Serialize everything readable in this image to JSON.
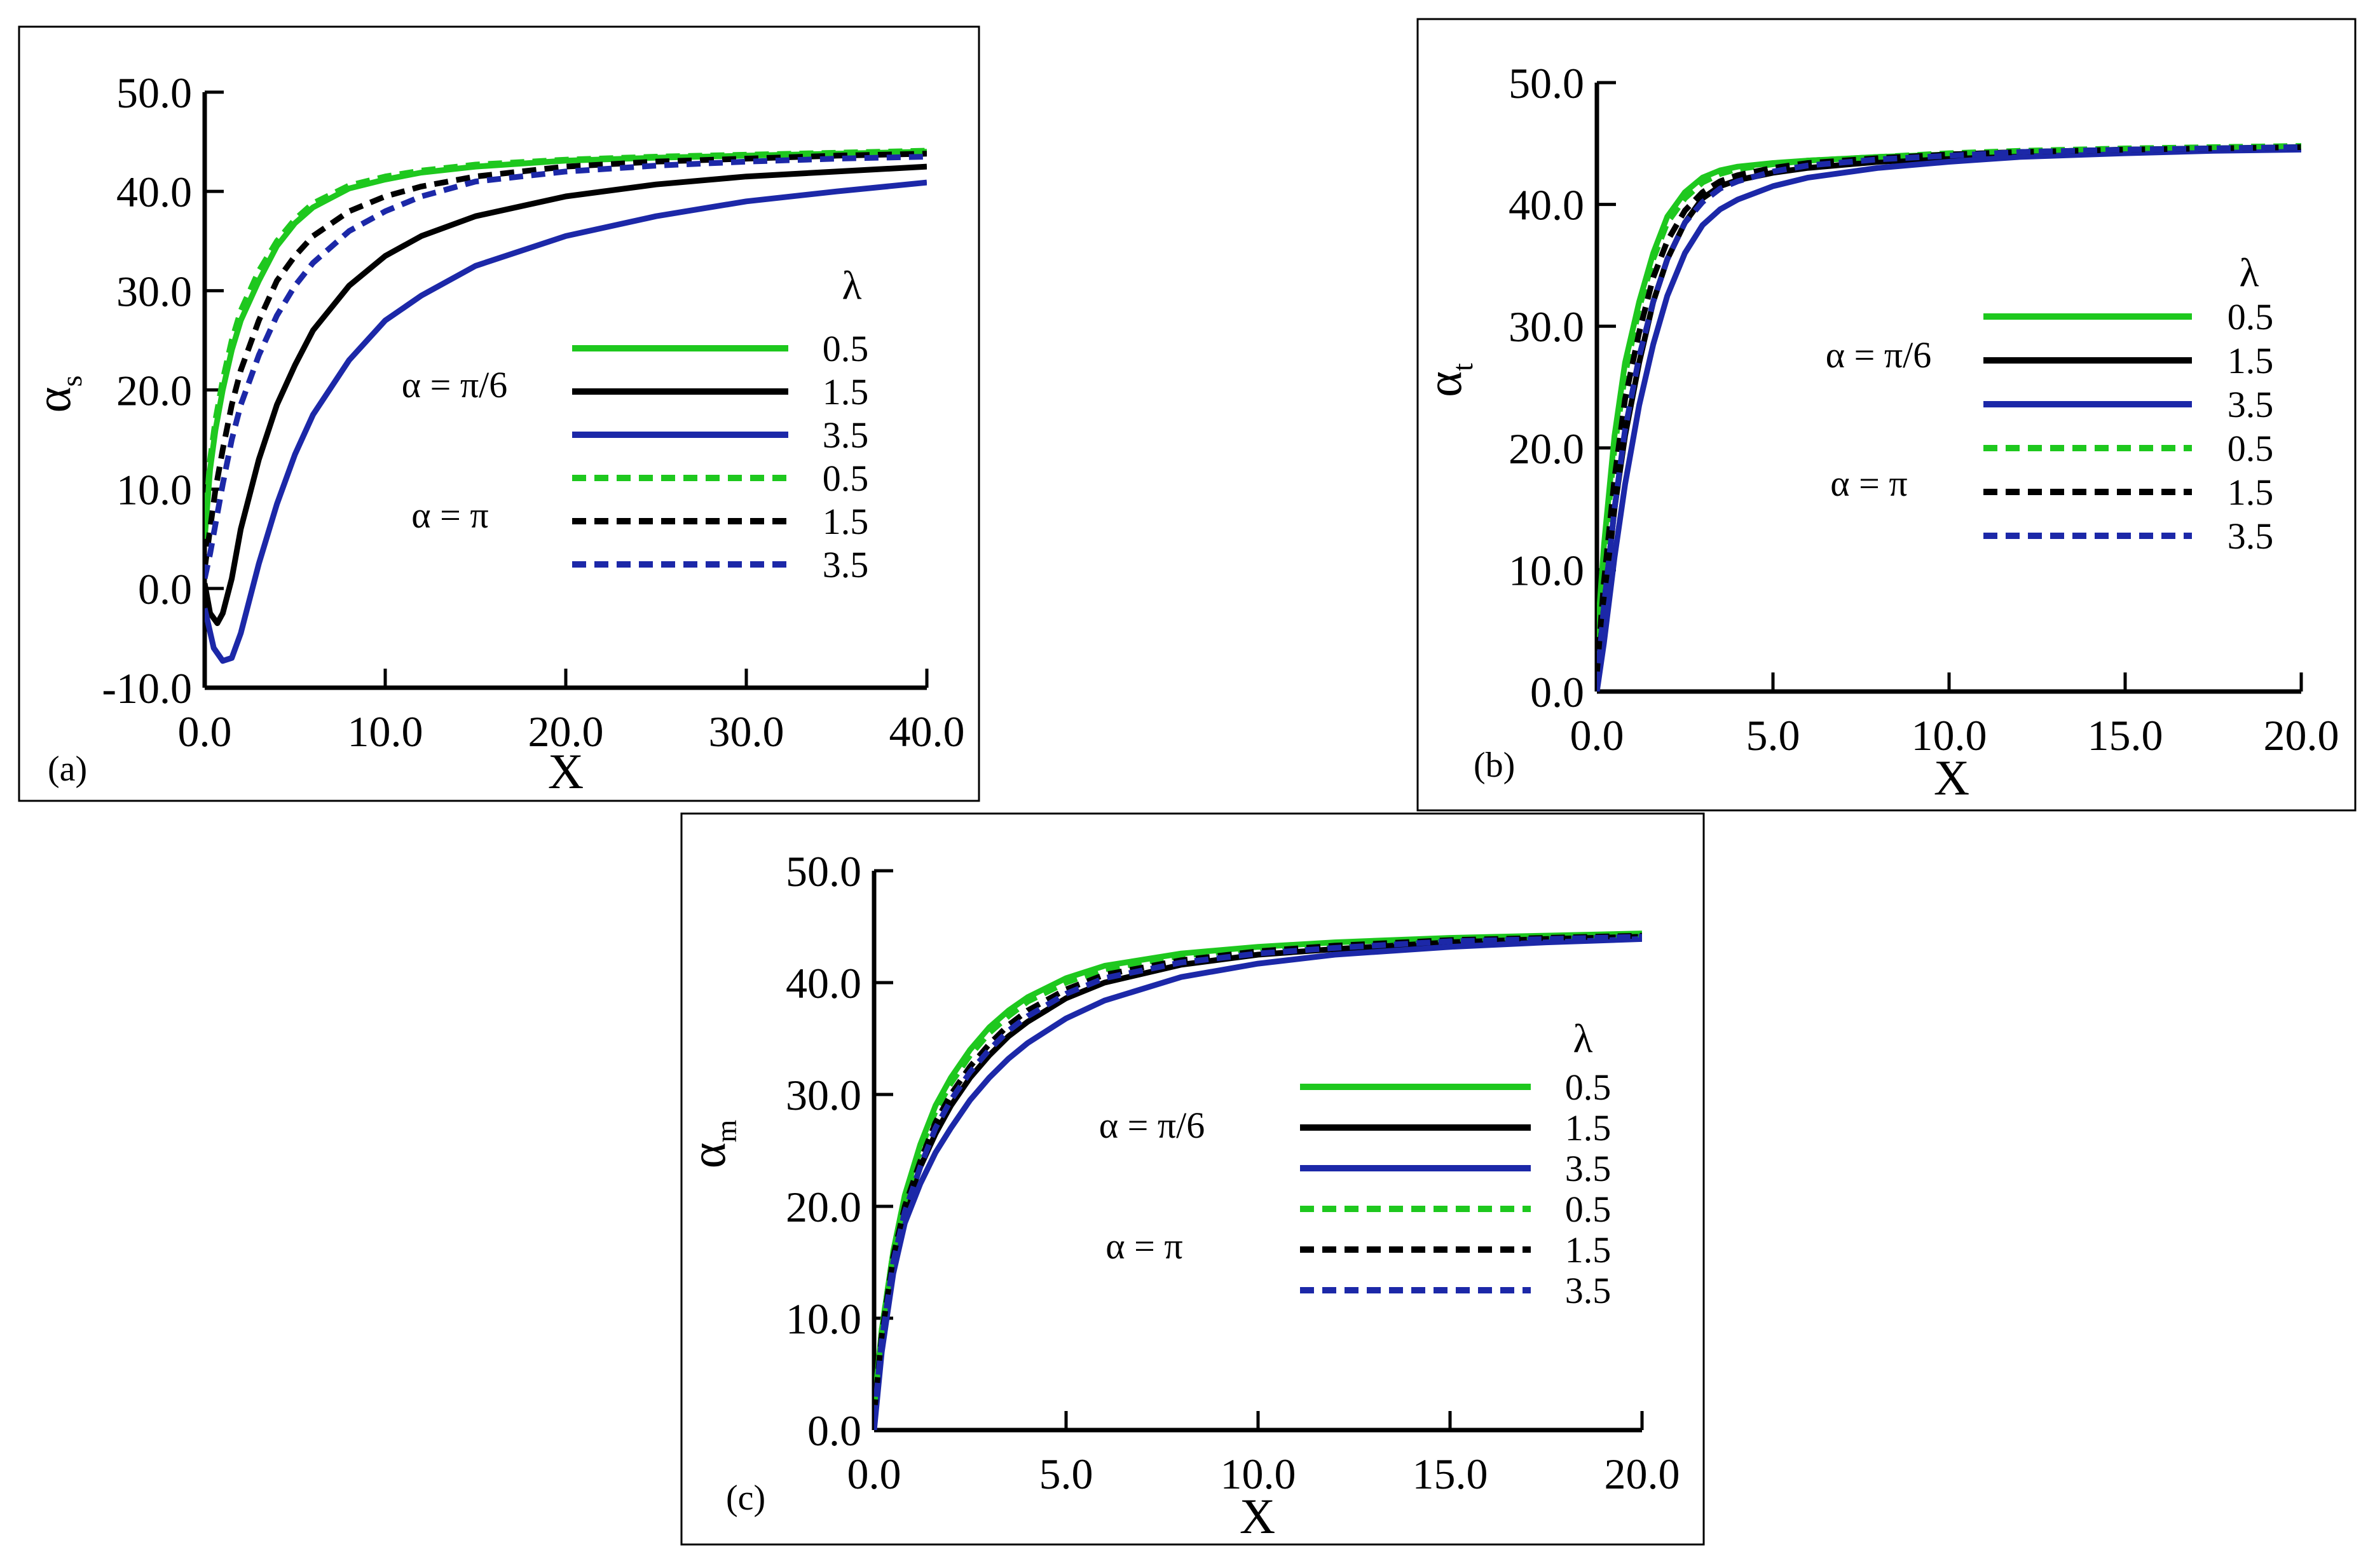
{
  "colors": {
    "lam_0_5": "#1ec81e",
    "lam_1_5": "#000000",
    "lam_3_5": "#1c28a8",
    "axis": "#000000"
  },
  "chart_data": [
    {
      "panel": "(a)",
      "type": "line",
      "xlabel": "X",
      "ylabel": "α",
      "ylabel_sub": "s",
      "xlim": [
        0,
        40
      ],
      "ylim": [
        -10,
        50
      ],
      "xticks": [
        0,
        10,
        20,
        30,
        40
      ],
      "yticks": [
        -10,
        0,
        10,
        20,
        30,
        40,
        50
      ],
      "xtick_labels": [
        "0.0",
        "10.0",
        "20.0",
        "30.0",
        "40.0"
      ],
      "ytick_labels": [
        "-10.0",
        "0.0",
        "10.0",
        "20.0",
        "30.0",
        "40.0",
        "50.0"
      ],
      "legend": {
        "header": "λ",
        "group_labels": [
          "α = π/6",
          "α = π"
        ],
        "entries": [
          "0.5",
          "1.5",
          "3.5",
          "0.5",
          "1.5",
          "3.5"
        ]
      },
      "series": [
        {
          "name": "α = π/6, λ = 0.5",
          "style": "solid",
          "color_key": "lam_0_5",
          "x": [
            0,
            0.3,
            0.6,
            1,
            1.5,
            2,
            3,
            4,
            5,
            6,
            8,
            10,
            12,
            15,
            20,
            25,
            30,
            35,
            40
          ],
          "y": [
            5,
            12,
            16,
            20,
            24,
            27,
            31,
            34.5,
            36.8,
            38.4,
            40.3,
            41.2,
            41.9,
            42.5,
            43.1,
            43.4,
            43.6,
            43.8,
            44
          ]
        },
        {
          "name": "α = π/6, λ = 1.5",
          "style": "solid",
          "color_key": "lam_1_5",
          "x": [
            0,
            0.3,
            0.7,
            1,
            1.5,
            2,
            3,
            4,
            5,
            6,
            8,
            10,
            12,
            15,
            20,
            25,
            30,
            35,
            40
          ],
          "y": [
            0.5,
            -2.5,
            -3.5,
            -2.5,
            1,
            6,
            13,
            18.5,
            22.5,
            26,
            30.5,
            33.5,
            35.5,
            37.5,
            39.5,
            40.7,
            41.5,
            42,
            42.5
          ]
        },
        {
          "name": "α = π/6, λ = 3.5",
          "style": "solid",
          "color_key": "lam_3_5",
          "x": [
            0,
            0.5,
            1,
            1.5,
            2,
            3,
            4,
            5,
            6,
            8,
            10,
            12,
            15,
            20,
            25,
            30,
            35,
            40
          ],
          "y": [
            -2,
            -6,
            -7.3,
            -7,
            -4.5,
            2.5,
            8.5,
            13.5,
            17.5,
            23,
            27,
            29.5,
            32.5,
            35.5,
            37.5,
            39,
            40,
            40.9
          ]
        },
        {
          "name": "α = π, λ = 0.5",
          "style": "dashed",
          "color_key": "lam_0_5",
          "x": [
            0,
            0.3,
            0.6,
            1,
            1.5,
            2,
            3,
            4,
            5,
            6,
            8,
            10,
            12,
            15,
            20,
            25,
            30,
            35,
            40
          ],
          "y": [
            6,
            13,
            17,
            21,
            25,
            28,
            32,
            35,
            37.2,
            38.8,
            40.6,
            41.5,
            42.1,
            42.7,
            43.2,
            43.5,
            43.7,
            43.9,
            44.1
          ]
        },
        {
          "name": "α = π, λ = 1.5",
          "style": "dashed",
          "color_key": "lam_1_5",
          "x": [
            0,
            0.3,
            0.6,
            1,
            1.5,
            2,
            3,
            4,
            5,
            6,
            8,
            10,
            12,
            15,
            20,
            25,
            30,
            35,
            40
          ],
          "y": [
            2,
            6,
            10,
            14,
            18.5,
            22,
            27,
            31,
            33.5,
            35.5,
            38,
            39.5,
            40.5,
            41.5,
            42.5,
            43,
            43.3,
            43.6,
            43.8
          ]
        },
        {
          "name": "α = π, λ = 3.5",
          "style": "dashed",
          "color_key": "lam_3_5",
          "x": [
            0,
            0.3,
            0.6,
            1,
            1.5,
            2,
            3,
            4,
            5,
            6,
            8,
            10,
            12,
            15,
            20,
            25,
            30,
            35,
            40
          ],
          "y": [
            1,
            3.5,
            6.5,
            10.5,
            15,
            18.5,
            23.5,
            27.5,
            30.5,
            32.8,
            36,
            38,
            39.5,
            41,
            42,
            42.6,
            43,
            43.3,
            43.5
          ]
        }
      ]
    },
    {
      "panel": "(b)",
      "type": "line",
      "xlabel": "X",
      "ylabel": "α",
      "ylabel_sub": "t",
      "xlim": [
        0,
        20
      ],
      "ylim": [
        0,
        50
      ],
      "xticks": [
        0,
        5,
        10,
        15,
        20
      ],
      "yticks": [
        0,
        10,
        20,
        30,
        40,
        50
      ],
      "xtick_labels": [
        "0.0",
        "5.0",
        "10.0",
        "15.0",
        "20.0"
      ],
      "ytick_labels": [
        "0.0",
        "10.0",
        "20.0",
        "30.0",
        "40.0",
        "50.0"
      ],
      "legend": {
        "header": "λ",
        "group_labels": [
          "α = π/6",
          "α = π"
        ],
        "entries": [
          "0.5",
          "1.5",
          "3.5",
          "0.5",
          "1.5",
          "3.5"
        ]
      },
      "series": [
        {
          "name": "α = π/6, λ = 0.5",
          "style": "solid",
          "color_key": "lam_0_5",
          "x": [
            0,
            0.2,
            0.5,
            0.8,
            1.2,
            1.6,
            2,
            2.5,
            3,
            3.5,
            4,
            5,
            6,
            8,
            10,
            12,
            15,
            17.5,
            20
          ],
          "y": [
            4,
            12,
            21,
            27,
            32,
            36,
            39,
            41,
            42.2,
            42.8,
            43.1,
            43.4,
            43.6,
            43.9,
            44.1,
            44.3,
            44.5,
            44.6,
            44.7
          ]
        },
        {
          "name": "α = π/6, λ = 1.5",
          "style": "solid",
          "color_key": "lam_1_5",
          "x": [
            0,
            0.2,
            0.5,
            0.8,
            1.2,
            1.6,
            2,
            2.5,
            3,
            3.5,
            4,
            5,
            6,
            8,
            10,
            12,
            15,
            17.5,
            20
          ],
          "y": [
            1,
            7,
            15,
            21,
            27,
            32,
            35.5,
            38.5,
            40.5,
            41.5,
            42,
            42.6,
            43,
            43.5,
            43.8,
            44.1,
            44.4,
            44.5,
            44.6
          ]
        },
        {
          "name": "α = π/6, λ = 3.5",
          "style": "solid",
          "color_key": "lam_3_5",
          "x": [
            0,
            0.2,
            0.5,
            0.8,
            1.2,
            1.6,
            2,
            2.5,
            3,
            3.5,
            4,
            5,
            6,
            8,
            10,
            12,
            15,
            17.5,
            20
          ],
          "y": [
            0,
            4,
            11,
            17,
            23.5,
            28.5,
            32.5,
            36,
            38.3,
            39.6,
            40.4,
            41.5,
            42.2,
            43,
            43.5,
            43.9,
            44.2,
            44.4,
            44.5
          ]
        },
        {
          "name": "α = π, λ = 0.5",
          "style": "dashed",
          "color_key": "lam_0_5",
          "x": [
            0,
            0.2,
            0.5,
            0.8,
            1.2,
            1.6,
            2,
            2.5,
            3,
            3.5,
            4,
            5,
            6,
            8,
            10,
            12,
            15,
            17.5,
            20
          ],
          "y": [
            3,
            11,
            20,
            26,
            31.5,
            35.5,
            38.5,
            40.5,
            41.8,
            42.5,
            42.9,
            43.3,
            43.6,
            43.9,
            44.2,
            44.4,
            44.6,
            44.7,
            44.8
          ]
        },
        {
          "name": "α = π, λ = 1.5",
          "style": "dashed",
          "color_key": "lam_1_5",
          "x": [
            0,
            0.2,
            0.5,
            0.8,
            1.2,
            1.6,
            2,
            2.5,
            3,
            3.5,
            4,
            5,
            6,
            8,
            10,
            12,
            15,
            17.5,
            20
          ],
          "y": [
            1.5,
            9,
            17.5,
            24,
            29.5,
            34,
            37,
            39.5,
            41,
            41.9,
            42.4,
            43,
            43.4,
            43.8,
            44.1,
            44.3,
            44.5,
            44.6,
            44.7
          ]
        },
        {
          "name": "α = π, λ = 3.5",
          "style": "dashed",
          "color_key": "lam_3_5",
          "x": [
            0,
            0.2,
            0.5,
            0.8,
            1.2,
            1.6,
            2,
            2.5,
            3,
            3.5,
            4,
            5,
            6,
            8,
            10,
            12,
            15,
            17.5,
            20
          ],
          "y": [
            0.5,
            7,
            15,
            21.5,
            27.5,
            32,
            35.5,
            38.5,
            40.2,
            41.3,
            41.9,
            42.7,
            43.2,
            43.7,
            44,
            44.3,
            44.5,
            44.6,
            44.7
          ]
        }
      ]
    },
    {
      "panel": "(c)",
      "type": "line",
      "xlabel": "X",
      "ylabel": "α",
      "ylabel_sub": "m",
      "xlim": [
        0,
        20
      ],
      "ylim": [
        0,
        50
      ],
      "xticks": [
        0,
        5,
        10,
        15,
        20
      ],
      "yticks": [
        0,
        10,
        20,
        30,
        40,
        50
      ],
      "xtick_labels": [
        "0.0",
        "5.0",
        "10.0",
        "15.0",
        "20.0"
      ],
      "ytick_labels": [
        "0.0",
        "10.0",
        "20.0",
        "30.0",
        "40.0",
        "50.0"
      ],
      "legend": {
        "header": "λ",
        "group_labels": [
          "α = π/6",
          "α = π"
        ],
        "entries": [
          "0.5",
          "1.5",
          "3.5",
          "0.5",
          "1.5",
          "3.5"
        ]
      },
      "series": [
        {
          "name": "α = π/6, λ = 0.5",
          "style": "solid",
          "color_key": "lam_0_5",
          "x": [
            0,
            0.2,
            0.5,
            0.8,
            1.2,
            1.6,
            2,
            2.5,
            3,
            3.5,
            4,
            5,
            6,
            8,
            10,
            12,
            15,
            17.5,
            20
          ],
          "y": [
            2,
            9,
            16,
            21,
            25.5,
            29,
            31.5,
            34,
            36,
            37.5,
            38.7,
            40.4,
            41.5,
            42.6,
            43.2,
            43.6,
            44,
            44.2,
            44.4
          ]
        },
        {
          "name": "α = π/6, λ = 1.5",
          "style": "solid",
          "color_key": "lam_1_5",
          "x": [
            0,
            0.2,
            0.5,
            0.8,
            1.2,
            1.6,
            2,
            2.5,
            3,
            3.5,
            4,
            5,
            6,
            8,
            10,
            12,
            15,
            17.5,
            20
          ],
          "y": [
            1,
            8,
            15,
            19.5,
            23.5,
            26.5,
            29,
            31.5,
            33.5,
            35.2,
            36.5,
            38.6,
            40,
            41.6,
            42.5,
            43,
            43.6,
            43.9,
            44.1
          ]
        },
        {
          "name": "α = π/6, λ = 3.5",
          "style": "solid",
          "color_key": "lam_3_5",
          "x": [
            0,
            0.2,
            0.5,
            0.8,
            1.2,
            1.6,
            2,
            2.5,
            3,
            3.5,
            4,
            5,
            6,
            8,
            10,
            12,
            15,
            17.5,
            20
          ],
          "y": [
            0,
            7,
            14,
            18.5,
            22,
            24.8,
            27,
            29.5,
            31.5,
            33.2,
            34.6,
            36.8,
            38.4,
            40.5,
            41.7,
            42.5,
            43.2,
            43.6,
            43.9
          ]
        },
        {
          "name": "α = π, λ = 0.5",
          "style": "dashed",
          "color_key": "lam_0_5",
          "x": [
            0,
            0.2,
            0.5,
            0.8,
            1.2,
            1.6,
            2,
            2.5,
            3,
            3.5,
            4,
            5,
            6,
            8,
            10,
            12,
            15,
            17.5,
            20
          ],
          "y": [
            2,
            9,
            16,
            20.5,
            25,
            28.5,
            31,
            33.5,
            35.5,
            37,
            38.3,
            40,
            41.2,
            42.4,
            43.1,
            43.5,
            43.9,
            44.1,
            44.3
          ]
        },
        {
          "name": "α = π, λ = 1.5",
          "style": "dashed",
          "color_key": "lam_1_5",
          "x": [
            0,
            0.2,
            0.5,
            0.8,
            1.2,
            1.6,
            2,
            2.5,
            3,
            3.5,
            4,
            5,
            6,
            8,
            10,
            12,
            15,
            17.5,
            20
          ],
          "y": [
            1.5,
            8.5,
            15.5,
            20,
            24,
            27.5,
            30,
            32.5,
            34.5,
            36.2,
            37.5,
            39.4,
            40.7,
            42,
            42.8,
            43.3,
            43.8,
            44,
            44.2
          ]
        },
        {
          "name": "α = π, λ = 3.5",
          "style": "dashed",
          "color_key": "lam_3_5",
          "x": [
            0,
            0.2,
            0.5,
            0.8,
            1.2,
            1.6,
            2,
            2.5,
            3,
            3.5,
            4,
            5,
            6,
            8,
            10,
            12,
            15,
            17.5,
            20
          ],
          "y": [
            1,
            8,
            15,
            19.5,
            23.5,
            27,
            29.5,
            32,
            34,
            35.7,
            37,
            39,
            40.4,
            41.8,
            42.6,
            43.1,
            43.7,
            43.9,
            44.1
          ]
        }
      ]
    }
  ]
}
